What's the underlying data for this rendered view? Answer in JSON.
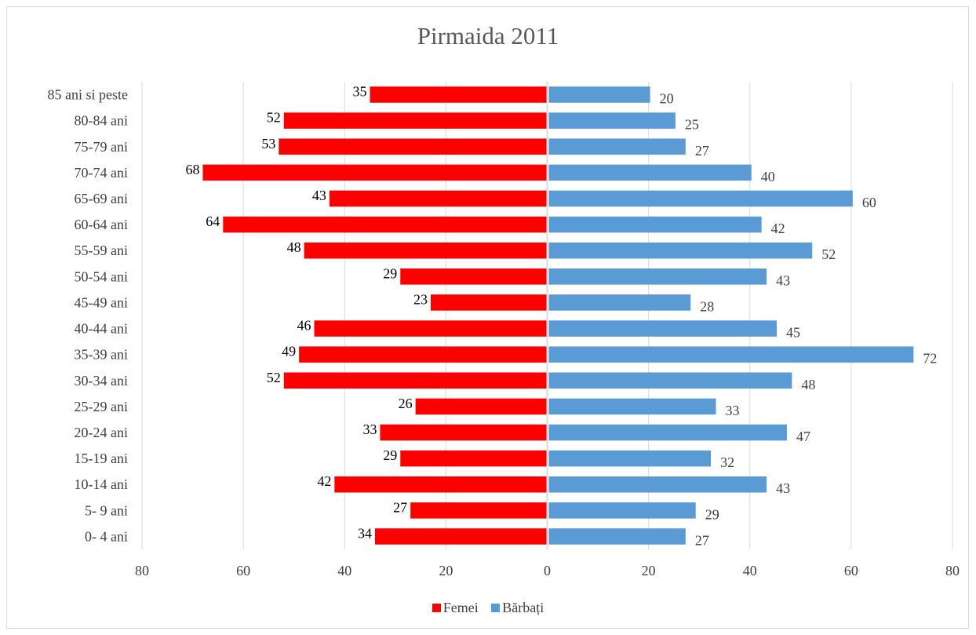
{
  "chart_data": {
    "type": "bar",
    "orientation": "horizontal-population-pyramid",
    "title": "Pirmaida 2011",
    "categories": [
      "85 ani si peste",
      "80-84 ani",
      "75-79 ani",
      "70-74 ani",
      "65-69 ani",
      "60-64 ani",
      "55-59 ani",
      "50-54 ani",
      "45-49 ani",
      "40-44 ani",
      "35-39 ani",
      "30-34 ani",
      "25-29 ani",
      "20-24 ani",
      "15-19 ani",
      "10-14 ani",
      "5- 9 ani",
      "0- 4 ani"
    ],
    "series": [
      {
        "name": "Femei",
        "color": "#ff0000",
        "values": [
          35,
          52,
          53,
          68,
          43,
          64,
          48,
          29,
          23,
          46,
          49,
          52,
          26,
          33,
          29,
          42,
          27,
          34
        ]
      },
      {
        "name": "Bărbați",
        "color": "#5b9bd5",
        "values": [
          20,
          25,
          27,
          40,
          60,
          42,
          52,
          43,
          28,
          45,
          72,
          48,
          33,
          47,
          32,
          43,
          29,
          27
        ]
      }
    ],
    "x_tick_labels": [
      "80",
      "60",
      "40",
      "20",
      "0",
      "20",
      "40",
      "60",
      "80"
    ],
    "xlim": [
      -80,
      80
    ],
    "grid": true,
    "legend_position": "bottom"
  }
}
